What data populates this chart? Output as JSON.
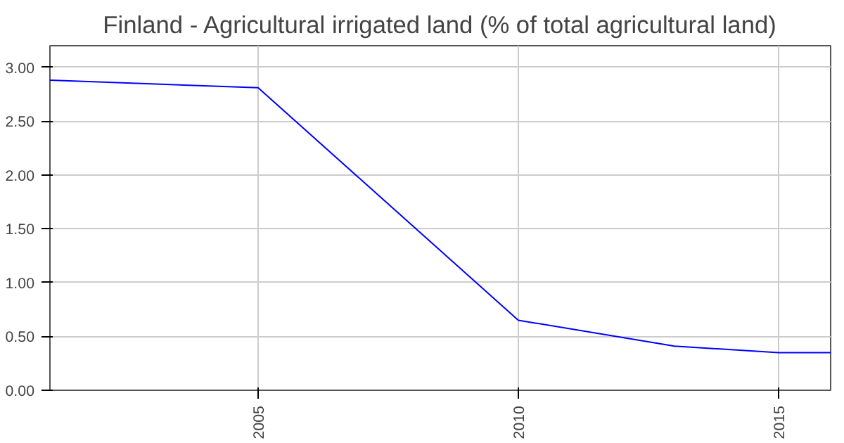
{
  "chart_data": {
    "type": "line",
    "title": "Finland - Agricultural irrigated land (% of total agricultural land)",
    "x": [
      2001,
      2005,
      2010,
      2013,
      2015,
      2016
    ],
    "series": [
      {
        "color": "#0000ff",
        "values": [
          2.88,
          2.81,
          0.65,
          0.41,
          0.35,
          0.35
        ]
      }
    ],
    "xlim": [
      2001,
      2016
    ],
    "xticks": [
      2005,
      2010,
      2015
    ],
    "ylim": [
      0,
      3.2
    ],
    "yticks": [
      {
        "value": 0,
        "label": "0.00"
      },
      {
        "value": 0.5,
        "label": "0.50"
      },
      {
        "value": 1,
        "label": "1.00"
      },
      {
        "value": 1.5,
        "label": "1.50"
      },
      {
        "value": 2,
        "label": "2.00"
      },
      {
        "value": 2.5,
        "label": "2.50"
      },
      {
        "value": 3,
        "label": "3.00"
      }
    ],
    "grid": true,
    "marker": "none",
    "line_style": "solid"
  }
}
